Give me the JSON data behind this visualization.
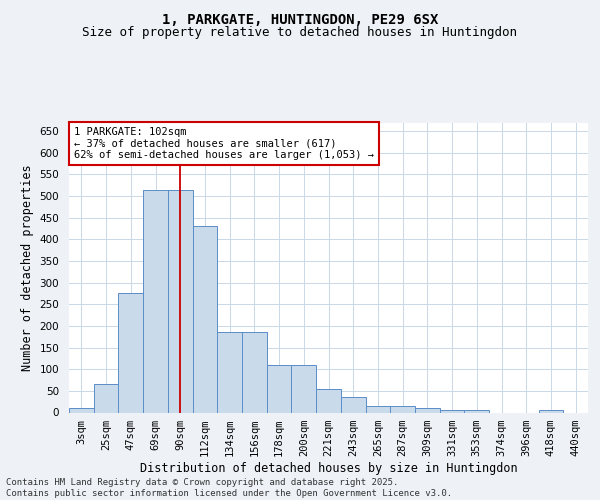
{
  "title": "1, PARKGATE, HUNTINGDON, PE29 6SX",
  "subtitle": "Size of property relative to detached houses in Huntingdon",
  "xlabel": "Distribution of detached houses by size in Huntingdon",
  "ylabel": "Number of detached properties",
  "footer_line1": "Contains HM Land Registry data © Crown copyright and database right 2025.",
  "footer_line2": "Contains public sector information licensed under the Open Government Licence v3.0.",
  "annotation_line1": "1 PARKGATE: 102sqm",
  "annotation_line2": "← 37% of detached houses are smaller (617)",
  "annotation_line3": "62% of semi-detached houses are larger (1,053) →",
  "bar_labels": [
    "3sqm",
    "25sqm",
    "47sqm",
    "69sqm",
    "90sqm",
    "112sqm",
    "134sqm",
    "156sqm",
    "178sqm",
    "200sqm",
    "221sqm",
    "243sqm",
    "265sqm",
    "287sqm",
    "309sqm",
    "331sqm",
    "353sqm",
    "374sqm",
    "396sqm",
    "418sqm",
    "440sqm"
  ],
  "bar_values": [
    10,
    65,
    275,
    515,
    515,
    430,
    185,
    185,
    110,
    110,
    55,
    35,
    15,
    15,
    10,
    5,
    5,
    0,
    0,
    5,
    0
  ],
  "vline_index": 4,
  "bar_color": "#c9daea",
  "bar_edge_color": "#5b8dc9",
  "vline_color": "#cc0000",
  "ylim": [
    0,
    670
  ],
  "yticks": [
    0,
    50,
    100,
    150,
    200,
    250,
    300,
    350,
    400,
    450,
    500,
    550,
    600,
    650
  ],
  "background_color": "#eef2f7",
  "plot_bg_color": "#ffffff",
  "grid_color": "#c8d8e8",
  "title_fontsize": 10,
  "subtitle_fontsize": 9,
  "xlabel_fontsize": 8.5,
  "ylabel_fontsize": 8.5,
  "tick_fontsize": 7.5,
  "annotation_fontsize": 7.5,
  "footer_fontsize": 6.5
}
